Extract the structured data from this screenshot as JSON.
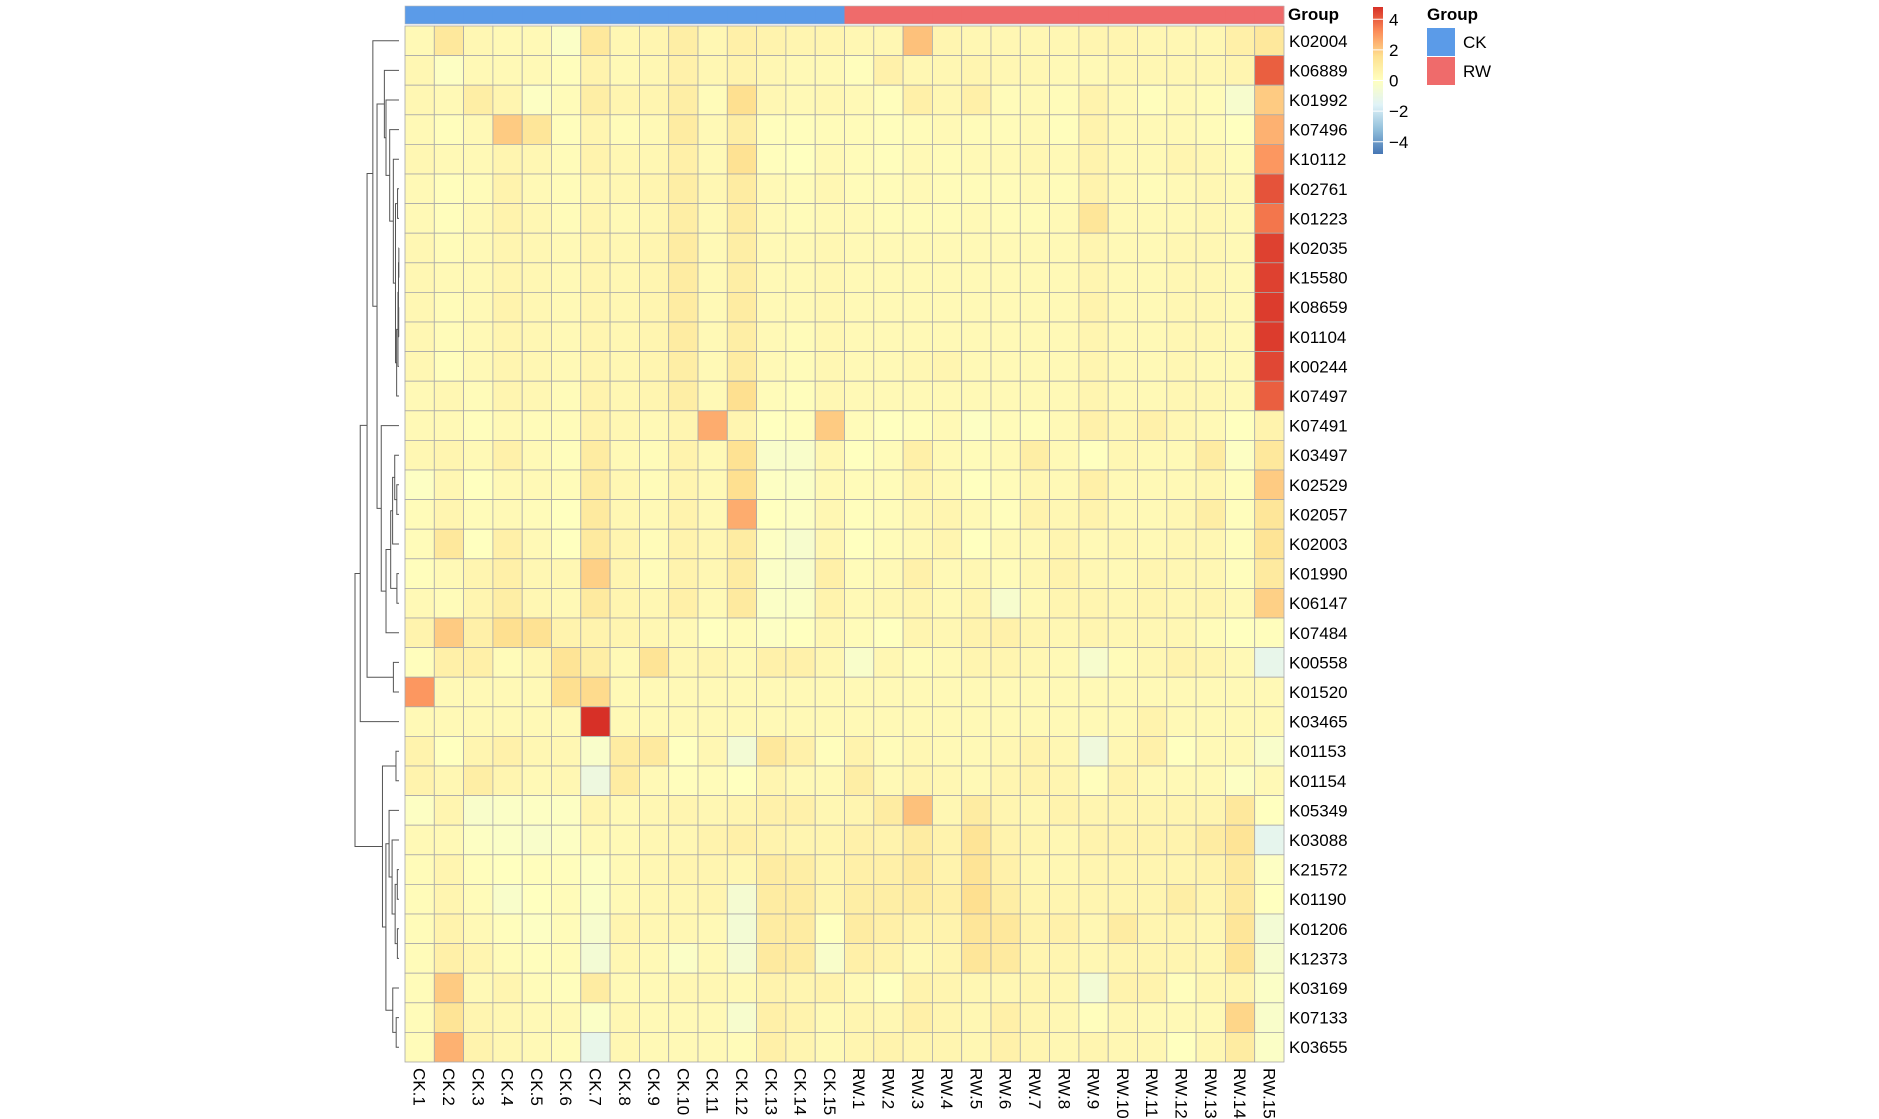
{
  "chart_data": {
    "type": "heatmap",
    "columns": [
      "CK.1",
      "CK.2",
      "CK.3",
      "CK.4",
      "CK.5",
      "CK.6",
      "CK.7",
      "CK.8",
      "CK.9",
      "CK.10",
      "CK.11",
      "CK.12",
      "CK.13",
      "CK.14",
      "CK.15",
      "RW.1",
      "RW.2",
      "RW.3",
      "RW.4",
      "RW.5",
      "RW.6",
      "RW.7",
      "RW.8",
      "RW.9",
      "RW.10",
      "RW.11",
      "RW.12",
      "RW.13",
      "RW.14",
      "RW.15"
    ],
    "column_groups": [
      "CK",
      "CK",
      "CK",
      "CK",
      "CK",
      "CK",
      "CK",
      "CK",
      "CK",
      "CK",
      "CK",
      "CK",
      "CK",
      "CK",
      "CK",
      "RW",
      "RW",
      "RW",
      "RW",
      "RW",
      "RW",
      "RW",
      "RW",
      "RW",
      "RW",
      "RW",
      "RW",
      "RW",
      "RW",
      "RW"
    ],
    "rows": [
      "K02004",
      "K06889",
      "K01992",
      "K07496",
      "K10112",
      "K02761",
      "K01223",
      "K02035",
      "K15580",
      "K08659",
      "K01104",
      "K00244",
      "K07497",
      "K07491",
      "K03497",
      "K02529",
      "K02057",
      "K02003",
      "K01990",
      "K06147",
      "K07484",
      "K00558",
      "K01520",
      "K03465",
      "K01153",
      "K01154",
      "K05349",
      "K03088",
      "K21572",
      "K01190",
      "K01206",
      "K12373",
      "K03169",
      "K07133",
      "K03655"
    ],
    "values": [
      [
        0.3,
        1.2,
        0.4,
        0.3,
        0.3,
        -0.2,
        1.2,
        0.4,
        0.5,
        0.9,
        0.4,
        0.8,
        0.6,
        0.5,
        0.5,
        0.4,
        0.4,
        2.2,
        0.5,
        0.4,
        0.4,
        0.4,
        0.4,
        0.5,
        0.5,
        0.4,
        0.4,
        0.4,
        0.8,
        1.2
      ],
      [
        0.4,
        -0.1,
        0.3,
        0.3,
        0.3,
        0.1,
        0.6,
        0.3,
        0.4,
        0.7,
        0.4,
        0.6,
        0.4,
        0.3,
        0.3,
        0.1,
        0.7,
        0.4,
        0.4,
        0.5,
        0.4,
        0.4,
        0.3,
        0.3,
        0.4,
        0.4,
        0.4,
        0.4,
        0.5,
        4.0
      ],
      [
        0.4,
        0.3,
        0.9,
        0.5,
        -0.1,
        0.2,
        0.9,
        0.5,
        0.5,
        0.9,
        0.2,
        1.6,
        0.4,
        0.3,
        0.4,
        0.3,
        0.1,
        0.8,
        0.4,
        0.8,
        0.2,
        0.3,
        0.2,
        0.6,
        0.3,
        0.1,
        0.3,
        0.2,
        -0.4,
        2.0
      ],
      [
        0.3,
        0.1,
        0.3,
        2.0,
        1.3,
        0.1,
        0.5,
        0.2,
        0.3,
        1.0,
        0.3,
        0.9,
        0.1,
        0.1,
        0.2,
        0.2,
        0.1,
        0.2,
        0.3,
        0.2,
        0.2,
        0.3,
        0.1,
        0.6,
        0.3,
        0.3,
        0.3,
        0.2,
        0.0,
        2.5
      ],
      [
        0.4,
        0.3,
        0.3,
        0.5,
        0.4,
        0.2,
        0.6,
        0.4,
        0.4,
        0.8,
        0.3,
        1.5,
        0.1,
        0.0,
        0.3,
        0.2,
        0.1,
        0.3,
        0.2,
        0.3,
        0.3,
        0.4,
        0.3,
        0.6,
        0.3,
        0.3,
        0.5,
        0.4,
        0.2,
        3.0
      ],
      [
        0.3,
        0.1,
        0.2,
        0.6,
        0.3,
        0.2,
        0.4,
        0.4,
        0.5,
        0.9,
        0.4,
        1.0,
        0.3,
        0.2,
        0.4,
        0.2,
        0.2,
        0.3,
        0.2,
        0.2,
        0.2,
        0.3,
        0.2,
        0.6,
        0.3,
        0.2,
        0.3,
        0.4,
        0.3,
        4.2
      ],
      [
        0.3,
        0.1,
        0.3,
        0.6,
        0.4,
        0.2,
        0.5,
        0.3,
        0.4,
        0.9,
        0.3,
        1.0,
        0.3,
        0.2,
        0.3,
        0.3,
        0.2,
        0.2,
        0.2,
        0.3,
        0.2,
        0.2,
        0.3,
        1.3,
        0.3,
        0.3,
        0.3,
        0.4,
        0.3,
        3.6
      ],
      [
        0.4,
        0.2,
        0.3,
        0.5,
        0.4,
        0.3,
        0.5,
        0.4,
        0.5,
        1.0,
        0.3,
        0.9,
        0.3,
        0.3,
        0.4,
        0.3,
        0.3,
        0.3,
        0.3,
        0.3,
        0.3,
        0.3,
        0.3,
        0.5,
        0.3,
        0.3,
        0.4,
        0.4,
        0.3,
        4.5
      ],
      [
        0.4,
        0.3,
        0.3,
        0.5,
        0.4,
        0.3,
        0.5,
        0.4,
        0.5,
        1.0,
        0.3,
        0.9,
        0.3,
        0.3,
        0.4,
        0.3,
        0.3,
        0.3,
        0.3,
        0.3,
        0.3,
        0.3,
        0.3,
        0.5,
        0.3,
        0.3,
        0.4,
        0.4,
        0.3,
        4.5
      ],
      [
        0.4,
        0.2,
        0.3,
        0.6,
        0.4,
        0.3,
        0.5,
        0.4,
        0.5,
        1.0,
        0.3,
        1.0,
        0.3,
        0.3,
        0.4,
        0.3,
        0.3,
        0.3,
        0.3,
        0.3,
        0.3,
        0.3,
        0.3,
        0.6,
        0.3,
        0.3,
        0.4,
        0.4,
        0.3,
        4.6
      ],
      [
        0.4,
        0.2,
        0.3,
        0.5,
        0.4,
        0.3,
        0.5,
        0.4,
        0.5,
        1.0,
        0.3,
        0.9,
        0.3,
        0.2,
        0.4,
        0.3,
        0.3,
        0.3,
        0.3,
        0.3,
        0.3,
        0.3,
        0.3,
        0.5,
        0.3,
        0.3,
        0.4,
        0.4,
        0.3,
        4.6
      ],
      [
        0.4,
        0.1,
        0.3,
        0.5,
        0.4,
        0.3,
        0.5,
        0.4,
        0.5,
        0.9,
        0.3,
        1.0,
        0.3,
        0.2,
        0.4,
        0.3,
        0.3,
        0.4,
        0.5,
        0.3,
        0.3,
        0.3,
        0.3,
        0.5,
        0.3,
        0.3,
        0.4,
        0.3,
        0.3,
        4.4
      ],
      [
        0.3,
        0.4,
        0.2,
        0.5,
        0.4,
        0.2,
        0.6,
        0.4,
        0.5,
        0.9,
        0.3,
        1.6,
        0.2,
        0.1,
        0.4,
        0.3,
        0.3,
        0.3,
        0.3,
        0.3,
        0.3,
        0.3,
        0.3,
        0.5,
        0.3,
        0.3,
        0.4,
        0.4,
        0.3,
        4.0
      ],
      [
        0.3,
        0.3,
        0.1,
        0.3,
        0.2,
        0.2,
        0.6,
        0.4,
        0.3,
        0.5,
        2.6,
        0.5,
        0.0,
        0.1,
        2.0,
        0.2,
        0.0,
        0.1,
        0.3,
        -0.1,
        0.2,
        0.1,
        0.3,
        0.7,
        0.4,
        0.7,
        0.4,
        0.3,
        0.0,
        0.6
      ],
      [
        0.4,
        0.5,
        0.3,
        0.7,
        0.3,
        0.1,
        1.0,
        0.3,
        0.2,
        0.6,
        0.3,
        1.5,
        -0.3,
        -0.3,
        0.4,
        0.0,
        0.2,
        0.8,
        0.3,
        0.2,
        0.3,
        0.9,
        0.3,
        0.0,
        0.4,
        0.3,
        0.3,
        1.0,
        -0.1,
        1.2
      ],
      [
        -0.1,
        0.4,
        0.0,
        0.3,
        0.3,
        0.2,
        1.0,
        0.4,
        0.2,
        0.5,
        0.3,
        1.6,
        -0.1,
        -0.2,
        0.3,
        0.2,
        0.2,
        0.5,
        0.3,
        0.0,
        0.2,
        0.4,
        0.3,
        0.8,
        0.3,
        0.3,
        0.3,
        0.4,
        0.1,
        2.0
      ],
      [
        0.2,
        0.5,
        0.2,
        0.3,
        0.2,
        0.0,
        1.1,
        0.4,
        0.3,
        0.6,
        0.3,
        2.6,
        0.0,
        -0.1,
        0.4,
        0.1,
        0.2,
        0.4,
        0.5,
        0.3,
        0.1,
        0.6,
        0.4,
        0.6,
        0.3,
        0.3,
        0.4,
        0.9,
        0.1,
        1.3
      ],
      [
        0.2,
        1.2,
        0.0,
        0.8,
        0.3,
        0.0,
        1.1,
        0.5,
        0.2,
        0.6,
        0.4,
        1.0,
        -0.1,
        -0.4,
        0.4,
        0.0,
        0.2,
        0.3,
        0.5,
        0.0,
        0.3,
        0.3,
        0.5,
        0.3,
        0.4,
        0.3,
        0.4,
        0.4,
        0.1,
        1.4
      ],
      [
        0.1,
        0.3,
        0.5,
        0.8,
        0.4,
        0.4,
        1.9,
        0.5,
        0.2,
        0.6,
        0.4,
        1.0,
        -0.2,
        -0.3,
        0.8,
        0.2,
        0.3,
        0.7,
        0.3,
        0.4,
        0.2,
        0.4,
        0.6,
        0.4,
        0.3,
        0.5,
        0.4,
        0.4,
        0.1,
        1.1
      ],
      [
        0.3,
        0.2,
        0.5,
        0.9,
        0.4,
        0.3,
        1.1,
        0.5,
        0.4,
        0.8,
        0.3,
        1.1,
        -0.2,
        -0.2,
        0.6,
        0.3,
        0.4,
        0.5,
        0.3,
        0.5,
        -0.4,
        0.3,
        0.5,
        0.5,
        0.4,
        0.5,
        0.4,
        0.5,
        0.3,
        1.9
      ],
      [
        0.6,
        2.0,
        0.8,
        1.6,
        1.5,
        0.6,
        0.6,
        0.5,
        0.4,
        0.3,
        0.0,
        0.2,
        -0.1,
        0.0,
        0.4,
        0.2,
        0.0,
        0.5,
        0.4,
        0.6,
        0.7,
        0.5,
        0.4,
        0.5,
        0.4,
        0.4,
        0.4,
        0.2,
        0.0,
        0.1
      ],
      [
        0.1,
        0.8,
        0.8,
        0.2,
        0.4,
        1.4,
        0.9,
        0.3,
        1.4,
        0.4,
        0.5,
        0.3,
        0.7,
        0.7,
        0.4,
        -0.3,
        0.4,
        0.2,
        0.3,
        0.5,
        0.5,
        0.4,
        0.3,
        -0.4,
        0.2,
        0.4,
        0.6,
        0.5,
        0.3,
        -1.2
      ],
      [
        3.0,
        0.3,
        0.3,
        0.3,
        0.3,
        1.6,
        1.7,
        0.3,
        0.3,
        0.3,
        0.3,
        0.3,
        0.3,
        0.3,
        0.3,
        0.3,
        0.3,
        0.3,
        0.3,
        0.3,
        0.3,
        0.3,
        0.3,
        0.3,
        0.3,
        0.3,
        0.3,
        0.3,
        0.3,
        0.3
      ],
      [
        0.3,
        0.3,
        0.3,
        0.3,
        0.3,
        0.3,
        4.8,
        0.3,
        0.3,
        0.3,
        0.3,
        0.3,
        0.3,
        0.3,
        0.3,
        0.3,
        0.3,
        0.3,
        0.3,
        0.3,
        0.3,
        0.3,
        0.3,
        0.3,
        0.3,
        0.6,
        0.3,
        0.3,
        0.3,
        0.3
      ],
      [
        0.6,
        0.0,
        0.5,
        0.7,
        0.4,
        0.4,
        -0.3,
        1.0,
        1.1,
        0.0,
        0.4,
        -0.6,
        1.2,
        0.7,
        0.1,
        0.6,
        0.2,
        0.4,
        0.3,
        0.3,
        0.4,
        0.6,
        0.4,
        -0.8,
        0.4,
        0.7,
        0.0,
        0.3,
        0.3,
        -0.3
      ],
      [
        0.6,
        0.4,
        0.9,
        0.5,
        0.3,
        0.4,
        -0.9,
        1.0,
        0.3,
        0.1,
        0.2,
        0.0,
        0.5,
        0.3,
        0.3,
        0.9,
        0.3,
        0.5,
        0.4,
        0.3,
        0.5,
        0.6,
        0.5,
        0.1,
        0.6,
        0.3,
        0.3,
        0.3,
        -0.1,
        0.3
      ],
      [
        -0.1,
        0.5,
        -0.3,
        -0.2,
        -0.1,
        -0.1,
        0.5,
        0.3,
        0.4,
        0.5,
        0.4,
        0.5,
        0.7,
        0.7,
        0.4,
        0.5,
        1.0,
        2.2,
        0.4,
        1.0,
        0.5,
        0.4,
        0.6,
        0.5,
        0.5,
        0.5,
        0.5,
        0.5,
        1.2,
        0.0
      ],
      [
        0.3,
        0.3,
        -0.1,
        -0.2,
        -0.3,
        -0.1,
        0.3,
        0.3,
        0.4,
        0.4,
        0.6,
        0.8,
        0.6,
        0.5,
        0.5,
        0.7,
        0.6,
        1.0,
        0.6,
        1.4,
        0.6,
        0.5,
        0.4,
        0.6,
        0.6,
        0.6,
        0.6,
        1.0,
        1.4,
        -1.3
      ],
      [
        0.2,
        0.5,
        0.1,
        0.0,
        0.1,
        0.1,
        -0.1,
        0.3,
        0.4,
        0.5,
        0.5,
        0.4,
        1.0,
        0.9,
        0.5,
        0.8,
        0.8,
        1.1,
        0.6,
        1.4,
        0.7,
        0.4,
        0.4,
        0.5,
        0.5,
        0.5,
        0.5,
        0.6,
        1.1,
        -0.1
      ],
      [
        0.2,
        0.5,
        0.2,
        -0.3,
        0.0,
        0.2,
        -0.2,
        0.3,
        0.4,
        0.4,
        0.5,
        -0.5,
        1.0,
        1.0,
        0.5,
        0.9,
        0.9,
        1.0,
        0.8,
        1.6,
        0.9,
        0.5,
        0.5,
        0.5,
        0.5,
        0.5,
        0.9,
        0.5,
        1.1,
        0.0
      ],
      [
        0.2,
        0.6,
        0.3,
        0.1,
        -0.1,
        0.2,
        -0.4,
        0.5,
        0.4,
        0.4,
        0.3,
        -0.6,
        1.0,
        1.0,
        0.0,
        1.0,
        0.8,
        0.6,
        0.6,
        1.3,
        1.2,
        0.6,
        0.7,
        0.4,
        1.0,
        0.5,
        0.5,
        0.4,
        1.3,
        -0.6
      ],
      [
        0.2,
        0.8,
        0.5,
        0.2,
        0.1,
        0.2,
        -0.6,
        0.4,
        0.3,
        -0.2,
        0.3,
        -0.5,
        1.1,
        1.0,
        -0.3,
        0.8,
        0.6,
        0.3,
        0.5,
        1.3,
        1.1,
        0.5,
        0.5,
        0.4,
        0.5,
        0.5,
        0.5,
        0.4,
        1.4,
        -0.4
      ],
      [
        0.2,
        2.0,
        0.3,
        0.5,
        0.2,
        0.1,
        1.0,
        0.3,
        0.3,
        0.4,
        0.4,
        0.3,
        0.6,
        0.5,
        0.6,
        0.3,
        0.0,
        0.6,
        0.5,
        0.4,
        0.4,
        0.5,
        0.4,
        -0.6,
        0.6,
        0.6,
        0.1,
        0.4,
        0.5,
        -0.2
      ],
      [
        0.2,
        1.4,
        0.5,
        0.4,
        0.3,
        0.3,
        -0.2,
        0.4,
        0.3,
        0.3,
        0.3,
        -0.4,
        0.8,
        0.6,
        0.3,
        0.5,
        0.4,
        0.8,
        0.5,
        0.4,
        0.8,
        0.5,
        0.4,
        0.1,
        0.4,
        0.3,
        0.3,
        0.3,
        1.8,
        -0.3
      ],
      [
        0.2,
        2.5,
        0.6,
        0.4,
        0.3,
        0.2,
        -1.2,
        0.4,
        0.3,
        0.3,
        0.3,
        0.2,
        0.8,
        0.5,
        0.3,
        0.5,
        0.6,
        0.5,
        0.5,
        0.4,
        0.7,
        0.5,
        0.4,
        0.5,
        0.4,
        0.4,
        0.0,
        0.4,
        1.0,
        -0.2
      ]
    ],
    "legend_title": "Group",
    "legend": [
      {
        "label": "CK",
        "color": "#5B9BE8"
      },
      {
        "label": "RW",
        "color": "#EF6B6B"
      }
    ],
    "colorbar": {
      "ticks": [
        4,
        2,
        0,
        -2,
        -4
      ],
      "tick_labels": [
        "4",
        "2",
        "0",
        "−2",
        "−4"
      ],
      "range": [
        -4.8,
        4.8
      ],
      "colors": [
        "#4575B4",
        "#91BFDB",
        "#E0F3F8",
        "#FFFFBF",
        "#FEE090",
        "#FC8D59",
        "#D73027"
      ]
    },
    "annotation_label": "Group",
    "grid": true,
    "row_dendrogram": true
  }
}
